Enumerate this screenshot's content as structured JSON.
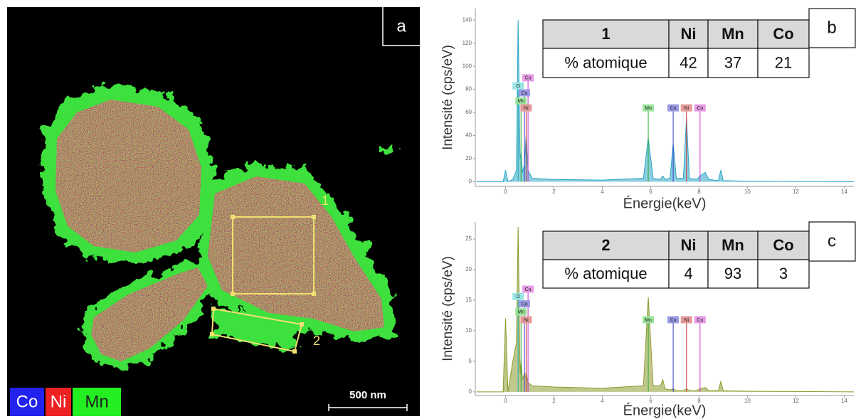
{
  "panel_a": {
    "panel_label": "a",
    "legend": [
      "Co",
      "Ni",
      "Mn"
    ],
    "scale_bar": "500 nm",
    "regions": [
      "1",
      "2"
    ]
  },
  "chart_data": [
    {
      "type": "line",
      "panel_label": "b",
      "xlabel": "Énergie(keV)",
      "ylabel": "Intensité  (cps/eV)",
      "color": "#2aa6c4",
      "x": [
        -1.2,
        -0.1,
        0.0,
        0.1,
        0.3,
        0.45,
        0.52,
        0.6,
        0.64,
        0.7,
        0.78,
        0.85,
        0.93,
        1.1,
        2,
        4,
        5.7,
        5.9,
        6.1,
        6.4,
        6.5,
        6.6,
        6.8,
        6.93,
        7.06,
        7.35,
        7.48,
        7.6,
        7.9,
        8.04,
        8.26,
        8.4,
        8.8,
        8.9,
        9.0,
        10,
        14.4
      ],
      "values": [
        0,
        0,
        10,
        0,
        2,
        10,
        140,
        20,
        25,
        8,
        15,
        40,
        10,
        3,
        2,
        1.5,
        3,
        38,
        3,
        2,
        5,
        2,
        3,
        33,
        3,
        3,
        55,
        3,
        2,
        5,
        8,
        2,
        1,
        10,
        1,
        0.5,
        0
      ],
      "xlim": [
        -1.25,
        14.4
      ],
      "ylim": [
        -4,
        150
      ],
      "xticks": [
        0,
        2,
        4,
        6,
        8,
        10,
        12,
        14
      ],
      "yticks": [
        0,
        20,
        40,
        60,
        80,
        100,
        120,
        140
      ],
      "peak_labels": [
        {
          "label": "Cu",
          "x": 0.93,
          "y": 90,
          "color": "#cc33cc",
          "bg": "#e59ae5"
        },
        {
          "label": "O",
          "x": 0.52,
          "y": 83,
          "color": "#22aaaa",
          "bg": "#9ae5e5"
        },
        {
          "label": "Co",
          "x": 0.78,
          "y": 77,
          "color": "#3333cc",
          "bg": "#9a9ae5"
        },
        {
          "label": "Mn",
          "x": 0.64,
          "y": 70,
          "color": "#33aa33",
          "bg": "#9ae59a"
        },
        {
          "label": "Ni",
          "x": 0.85,
          "y": 64,
          "color": "#cc3333",
          "bg": "#e59a9a"
        },
        {
          "label": "Mn",
          "x": 5.9,
          "y": 64,
          "color": "#33aa33",
          "bg": "#9ae59a"
        },
        {
          "label": "Co",
          "x": 6.93,
          "y": 64,
          "color": "#3333cc",
          "bg": "#9a9ae5"
        },
        {
          "label": "Ni",
          "x": 7.48,
          "y": 64,
          "color": "#cc3333",
          "bg": "#e59a9a"
        },
        {
          "label": "Cu",
          "x": 8.04,
          "y": 64,
          "color": "#cc33cc",
          "bg": "#e59ae5"
        }
      ],
      "table": {
        "header": [
          "1",
          "Ni",
          "Mn",
          "Co"
        ],
        "row": [
          "% atomique",
          42,
          37,
          21
        ]
      }
    },
    {
      "type": "line",
      "panel_label": "c",
      "xlabel": "Énergie(keV)",
      "ylabel": "Intensité  (cps/eV)",
      "color": "#8c9a2e",
      "x": [
        -1.2,
        -0.1,
        0.0,
        0.1,
        0.3,
        0.45,
        0.52,
        0.6,
        0.64,
        0.7,
        0.78,
        0.85,
        0.93,
        1.1,
        2,
        4,
        5.7,
        5.9,
        6.1,
        6.4,
        6.5,
        6.6,
        6.8,
        6.93,
        7.06,
        7.35,
        7.48,
        7.6,
        7.9,
        8.04,
        8.26,
        8.4,
        8.8,
        8.9,
        9.0,
        10,
        14.4
      ],
      "values": [
        0,
        0,
        12,
        0,
        5,
        8,
        27,
        3,
        5,
        2,
        3,
        3,
        1.5,
        1,
        0.8,
        0.6,
        1,
        15.5,
        1,
        1,
        2,
        0.5,
        0.3,
        0.5,
        0.2,
        0.2,
        0.5,
        0.2,
        0.2,
        0.5,
        0.7,
        0.2,
        0.2,
        1.7,
        0.2,
        0.1,
        0
      ],
      "xlim": [
        -1.25,
        14.4
      ],
      "ylim": [
        -0.6,
        27.8
      ],
      "xticks": [
        0,
        2,
        4,
        6,
        8,
        10,
        12,
        14
      ],
      "yticks": [
        0,
        5,
        10,
        15,
        20,
        25
      ],
      "peak_labels": [
        {
          "label": "Cu",
          "x": 0.93,
          "y": 16.8,
          "color": "#cc33cc",
          "bg": "#e59ae5"
        },
        {
          "label": "O",
          "x": 0.52,
          "y": 15.6,
          "color": "#22aaaa",
          "bg": "#9ae5e5"
        },
        {
          "label": "Co",
          "x": 0.78,
          "y": 14.4,
          "color": "#3333cc",
          "bg": "#9a9ae5"
        },
        {
          "label": "Mn",
          "x": 0.64,
          "y": 13.1,
          "color": "#33aa33",
          "bg": "#9ae59a"
        },
        {
          "label": "Ni",
          "x": 0.85,
          "y": 11.8,
          "color": "#cc3333",
          "bg": "#e59a9a"
        },
        {
          "label": "Mn",
          "x": 5.9,
          "y": 11.8,
          "color": "#33aa33",
          "bg": "#9ae59a"
        },
        {
          "label": "Co",
          "x": 6.93,
          "y": 11.8,
          "color": "#3333cc",
          "bg": "#9a9ae5"
        },
        {
          "label": "Ni",
          "x": 7.48,
          "y": 11.8,
          "color": "#cc3333",
          "bg": "#e59a9a"
        },
        {
          "label": "Cu",
          "x": 8.04,
          "y": 11.8,
          "color": "#cc33cc",
          "bg": "#e59ae5"
        }
      ],
      "table": {
        "header": [
          "2",
          "Ni",
          "Mn",
          "Co"
        ],
        "row": [
          "% atomique",
          4,
          93,
          3
        ]
      }
    }
  ]
}
